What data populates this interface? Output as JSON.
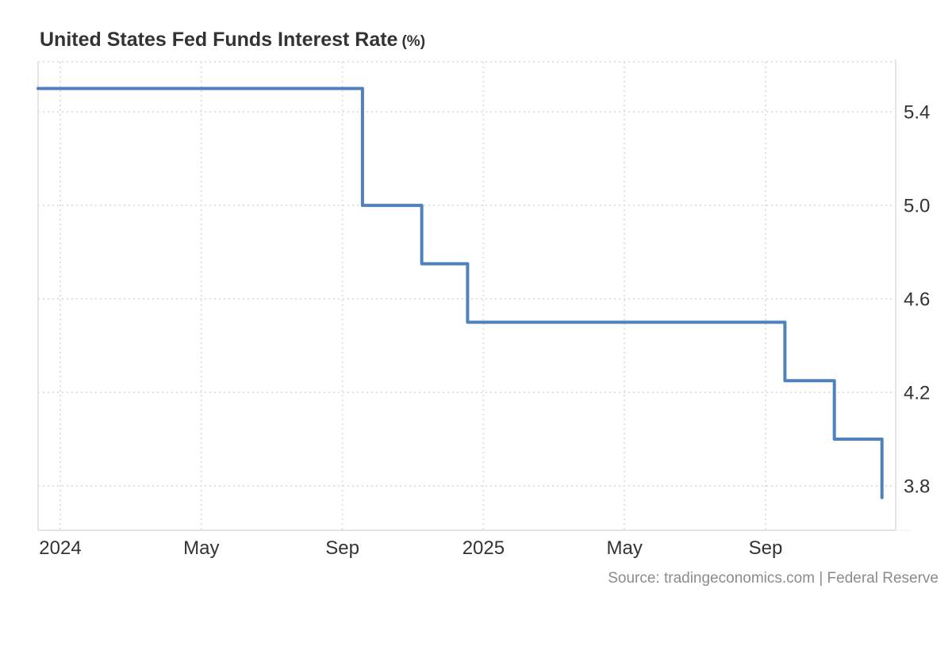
{
  "header": {
    "title": "United States Fed Funds Interest Rate",
    "unit": "(%)"
  },
  "footer": {
    "source": "Source: tradingeconomics.com | Federal Reserve"
  },
  "chart_data": {
    "type": "line",
    "step": "after",
    "title": "United States Fed Funds Interest Rate (%)",
    "legend": "none",
    "grid": "dotted",
    "line_color": "#4f81bd",
    "grid_color": "#e1e1e1",
    "axis_label_color": "#333334",
    "x_axis": {
      "unit": "months since Jan 2024",
      "range": [
        -0.63,
        23.69
      ],
      "ticks": [
        {
          "m": 0,
          "label": "2024"
        },
        {
          "m": 4,
          "label": "May"
        },
        {
          "m": 8,
          "label": "Sep"
        },
        {
          "m": 12,
          "label": "2025"
        },
        {
          "m": 16,
          "label": "May"
        },
        {
          "m": 20,
          "label": "Sep"
        }
      ]
    },
    "y_axis": {
      "unit": "%",
      "range": [
        3.61,
        5.614
      ],
      "ticks": [
        {
          "value": 5.4,
          "label": "5.4"
        },
        {
          "value": 5.0,
          "label": "5.0"
        },
        {
          "value": 4.6,
          "label": "4.6"
        },
        {
          "value": 4.2,
          "label": "4.2"
        },
        {
          "value": 3.8,
          "label": "3.8"
        }
      ]
    },
    "series": [
      {
        "name": "Fed Funds Interest Rate (%)",
        "points": [
          {
            "m": -0.63,
            "date": "Dec 2023",
            "value": 5.5
          },
          {
            "m": 8.57,
            "date": "Sep 2024",
            "value": 5.0
          },
          {
            "m": 10.25,
            "date": "Nov 2024",
            "value": 4.75
          },
          {
            "m": 11.55,
            "date": "Dec 2024",
            "value": 4.5
          },
          {
            "m": 20.55,
            "date": "Sep 2025",
            "value": 4.25
          },
          {
            "m": 21.95,
            "date": "Oct 2025",
            "value": 4.0
          },
          {
            "m": 23.3,
            "date": "Dec 2025",
            "value": 3.75
          }
        ]
      }
    ]
  }
}
